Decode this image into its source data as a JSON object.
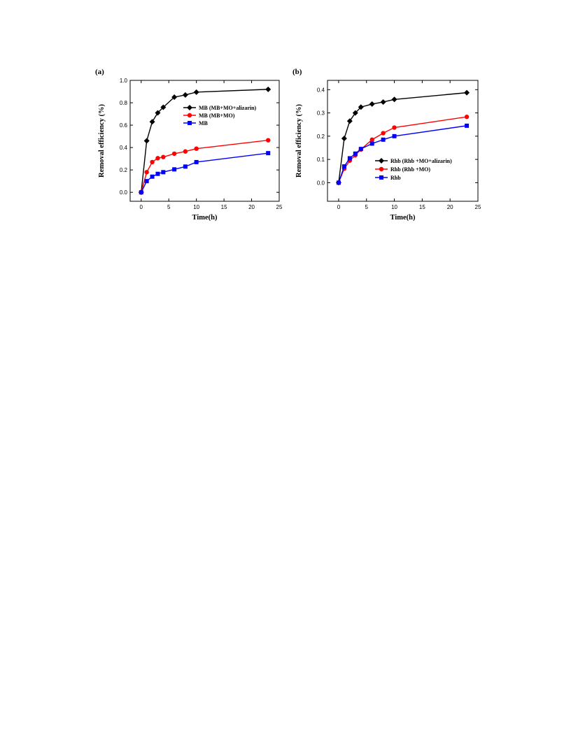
{
  "chart_data": [
    {
      "type": "line",
      "panel_label": "(a)",
      "xlabel": "Time(h)",
      "ylabel": "Removal efficiency (%)",
      "xlim": [
        -2,
        25
      ],
      "ylim": [
        -0.08,
        1.0
      ],
      "xticks": [
        0,
        5,
        10,
        15,
        20,
        25
      ],
      "yticks": [
        0.0,
        0.2,
        0.4,
        0.6,
        0.8,
        1.0
      ],
      "ytick_labels": [
        "0.0",
        "0.2",
        "0.4",
        "0.6",
        "0.8",
        "1.0"
      ],
      "grid": false,
      "legend_position": "center-right",
      "x": [
        0,
        1,
        2,
        3,
        4,
        6,
        8,
        10,
        23
      ],
      "series": [
        {
          "name": "MB (MB+MO+alizarin)",
          "color": "#000000",
          "marker": "diamond",
          "values": [
            0.0,
            0.46,
            0.63,
            0.71,
            0.76,
            0.85,
            0.87,
            0.895,
            0.92
          ]
        },
        {
          "name": "MB (MB+MO)",
          "color": "#ff0000",
          "marker": "circle",
          "values": [
            0.0,
            0.18,
            0.27,
            0.305,
            0.315,
            0.345,
            0.365,
            0.39,
            0.465
          ]
        },
        {
          "name": "MB",
          "color": "#0000ff",
          "marker": "square",
          "values": [
            0.0,
            0.1,
            0.14,
            0.165,
            0.18,
            0.205,
            0.23,
            0.27,
            0.35
          ]
        }
      ]
    },
    {
      "type": "line",
      "panel_label": "(b)",
      "xlabel": "Time(h)",
      "ylabel": "Removal efficiency (%)",
      "xlim": [
        -2,
        25
      ],
      "ylim": [
        -0.08,
        0.44
      ],
      "xticks": [
        0,
        5,
        10,
        15,
        20,
        25
      ],
      "yticks": [
        0.0,
        0.1,
        0.2,
        0.3,
        0.4
      ],
      "ytick_labels": [
        "0.0",
        "0.1",
        "0.2",
        "0.3",
        "0.4"
      ],
      "grid": false,
      "legend_position": "bottom-right",
      "x": [
        0,
        1,
        2,
        3,
        4,
        6,
        8,
        10,
        23
      ],
      "series": [
        {
          "name": "Rhb (Rhb +MO+alizarin)",
          "color": "#000000",
          "marker": "diamond",
          "values": [
            0.0,
            0.19,
            0.265,
            0.3,
            0.325,
            0.338,
            0.347,
            0.358,
            0.387
          ]
        },
        {
          "name": "Rhb (Rhb +MO)",
          "color": "#ff0000",
          "marker": "circle",
          "values": [
            0.0,
            0.06,
            0.095,
            0.118,
            0.143,
            0.185,
            0.213,
            0.237,
            0.283
          ]
        },
        {
          "name": "Rhb",
          "color": "#0000ff",
          "marker": "square",
          "values": [
            0.0,
            0.07,
            0.105,
            0.125,
            0.145,
            0.168,
            0.185,
            0.2,
            0.245
          ]
        }
      ]
    }
  ]
}
